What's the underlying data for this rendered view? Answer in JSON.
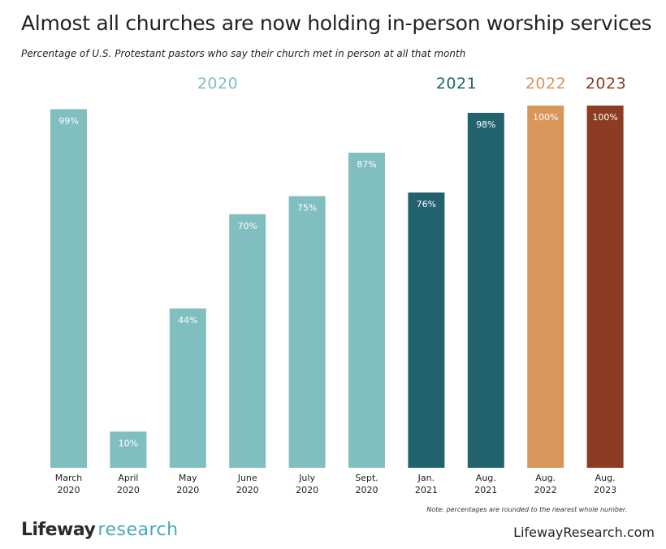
{
  "header": {
    "title": "Almost all churches are now holding in-person worship services",
    "subtitle": "Percentage of U.S. Protestant pastors who say their church met in person at all that month"
  },
  "years": [
    {
      "label": "2020",
      "color": "#80bec0"
    },
    {
      "label": "2021",
      "color": "#22626e"
    },
    {
      "label": "2022",
      "color": "#d9955a"
    },
    {
      "label": "2023",
      "color": "#8b3c22"
    }
  ],
  "chart_data": {
    "type": "bar",
    "title": "Almost all churches are now holding in-person worship services",
    "subtitle": "Percentage of U.S. Protestant pastors who say their church met in person at all that month",
    "ylim": [
      0,
      100
    ],
    "grid": false,
    "categories": [
      {
        "month": "March",
        "year": "2020"
      },
      {
        "month": "April",
        "year": "2020"
      },
      {
        "month": "May",
        "year": "2020"
      },
      {
        "month": "June",
        "year": "2020"
      },
      {
        "month": "July",
        "year": "2020"
      },
      {
        "month": "Sept.",
        "year": "2020"
      },
      {
        "month": "Jan.",
        "year": "2021"
      },
      {
        "month": "Aug.",
        "year": "2021"
      },
      {
        "month": "Aug.",
        "year": "2022"
      },
      {
        "month": "Aug.",
        "year": "2023"
      }
    ],
    "values": [
      99,
      10,
      44,
      70,
      75,
      87,
      76,
      98,
      100,
      100
    ],
    "data_labels": [
      "99%",
      "10%",
      "44%",
      "70%",
      "75%",
      "87%",
      "76%",
      "98%",
      "100%",
      "100%"
    ],
    "bar_colors": [
      "#80bec0",
      "#80bec0",
      "#80bec0",
      "#80bec0",
      "#80bec0",
      "#80bec0",
      "#22626e",
      "#22626e",
      "#d9955a",
      "#8b3c22"
    ]
  },
  "footer": {
    "note": "Note: percentages are rounded to the nearest whole number.",
    "logo_part1": "Lifeway",
    "logo_part2": "research",
    "website": "LifewayResearch.com"
  }
}
